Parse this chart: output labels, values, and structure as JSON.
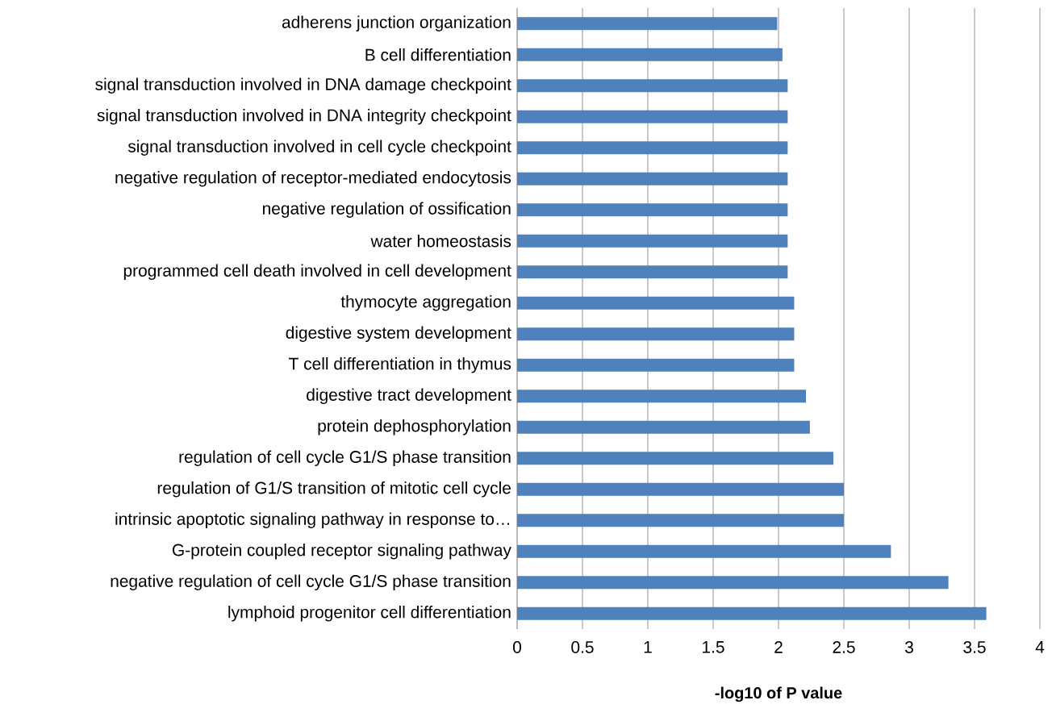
{
  "chart_data": {
    "type": "bar",
    "orientation": "horizontal",
    "xlabel": "-log10 of P value",
    "categories": [
      "adherens junction organization",
      "B cell differentiation",
      "signal transduction involved in DNA damage checkpoint",
      "signal transduction involved in DNA integrity checkpoint",
      "signal transduction involved in cell cycle checkpoint",
      "negative regulation of receptor-mediated endocytosis",
      "negative regulation of ossification",
      "water homeostasis",
      "programmed cell death involved in cell development",
      "thymocyte aggregation",
      "digestive system development",
      "T cell differentiation in thymus",
      "digestive tract development",
      "protein dephosphorylation",
      "regulation of cell cycle G1/S phase transition",
      "regulation of G1/S transition of mitotic cell cycle",
      "intrinsic apoptotic signaling pathway in response to…",
      "G-protein coupled receptor signaling pathway",
      "negative regulation of cell cycle G1/S phase transition",
      "lymphoid progenitor cell differentiation"
    ],
    "values": [
      1.99,
      2.03,
      2.07,
      2.07,
      2.07,
      2.07,
      2.07,
      2.07,
      2.07,
      2.12,
      2.12,
      2.12,
      2.21,
      2.24,
      2.42,
      2.5,
      2.5,
      2.86,
      3.3,
      3.59
    ],
    "color": "#4f81bd",
    "xlim": [
      0,
      4
    ],
    "xticks": [
      0,
      0.5,
      1,
      1.5,
      2,
      2.5,
      3,
      3.5,
      4
    ],
    "grid": "x"
  }
}
